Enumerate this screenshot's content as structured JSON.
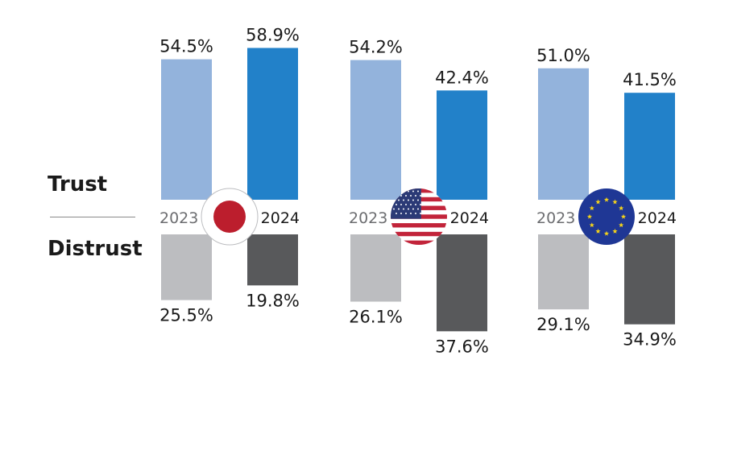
{
  "chart_data": {
    "type": "bar",
    "title": "",
    "row_labels": {
      "top": "Trust",
      "bottom": "Distrust"
    },
    "years": [
      "2023",
      "2024"
    ],
    "groups": [
      {
        "name": "Japan",
        "flag": "japan-flag-icon",
        "trust": [
          54.5,
          58.9
        ],
        "distrust": [
          25.5,
          19.8
        ],
        "trust_labels": [
          "54.5%",
          "58.9%"
        ],
        "distrust_labels": [
          "25.5%",
          "19.8%"
        ]
      },
      {
        "name": "United States",
        "flag": "us-flag-icon",
        "trust": [
          54.2,
          42.4
        ],
        "distrust": [
          26.1,
          37.6
        ],
        "trust_labels": [
          "54.2%",
          "42.4%"
        ],
        "distrust_labels": [
          "26.1%",
          "37.6%"
        ]
      },
      {
        "name": "European Union",
        "flag": "eu-flag-icon",
        "trust": [
          51.0,
          41.5
        ],
        "distrust": [
          29.1,
          34.9
        ],
        "trust_labels": [
          "51.0%",
          "41.5%"
        ],
        "distrust_labels": [
          "29.1%",
          "34.9%"
        ]
      }
    ],
    "colors": {
      "trust_2023": "#93b3dc",
      "trust_2024": "#2281c9",
      "distrust_2023": "#bcbdc0",
      "distrust_2024": "#58595b",
      "year_2023_text": "#6d6e71",
      "year_2024_text": "#1a1a1a"
    }
  }
}
